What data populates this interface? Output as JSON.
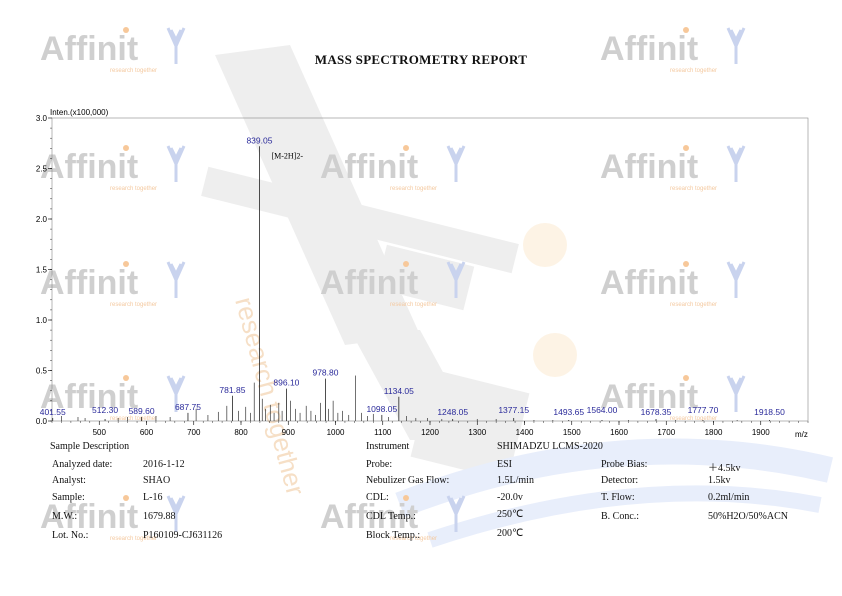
{
  "report_title": "MASS SPECTROMETRY REPORT",
  "watermark": {
    "word": "Affinit",
    "tagline": "research together",
    "big_word": "Affinity",
    "big_tagline": "research together"
  },
  "chart_data": {
    "type": "line",
    "ylabel": "Inten.(x100,000)",
    "xlabel": "m/z",
    "xlim": [
      400,
      2000
    ],
    "ylim": [
      0,
      3.0
    ],
    "xticks": [
      500,
      600,
      700,
      800,
      900,
      1000,
      1100,
      1200,
      1300,
      1400,
      1500,
      1600,
      1700,
      1800,
      1900
    ],
    "yticks": [
      0.0,
      0.5,
      1.0,
      1.5,
      2.0,
      2.5,
      3.0
    ],
    "ytick_labels": [
      "0.0",
      "0.5",
      "1.0",
      "1.5",
      "2.0",
      "2.5",
      "3.0"
    ],
    "annotation": {
      "text": "[M-2H]2-",
      "x": 839.05
    },
    "labeled_peaks": [
      {
        "label": "401.55",
        "x": 401.55,
        "y": 0.03
      },
      {
        "label": "512.30",
        "x": 512.3,
        "y": 0.02
      },
      {
        "label": "589.60",
        "x": 589.6,
        "y": 0.04
      },
      {
        "label": "687.75",
        "x": 687.75,
        "y": 0.08
      },
      {
        "label": "781.85",
        "x": 781.85,
        "y": 0.25
      },
      {
        "label": "839.05",
        "x": 839.05,
        "y": 2.72
      },
      {
        "label": "896.10",
        "x": 896.1,
        "y": 0.32
      },
      {
        "label": "978.80",
        "x": 978.8,
        "y": 0.42
      },
      {
        "label": "1098.05",
        "x": 1098.05,
        "y": 0.06
      },
      {
        "label": "1134.05",
        "x": 1134.05,
        "y": 0.24
      },
      {
        "label": "1248.05",
        "x": 1248.05,
        "y": 0.02
      },
      {
        "label": "1377.15",
        "x": 1377.15,
        "y": 0.03
      },
      {
        "label": "1493.65",
        "x": 1493.65,
        "y": 0.01
      },
      {
        "label": "1564.00",
        "x": 1564.0,
        "y": 0.01
      },
      {
        "label": "1678.35",
        "x": 1678.35,
        "y": 0.02
      },
      {
        "label": "1777.70",
        "x": 1777.7,
        "y": 0.01
      },
      {
        "label": "1918.50",
        "x": 1918.5,
        "y": 0.01
      }
    ],
    "minor_peaks": [
      {
        "x": 420,
        "y": 0.05
      },
      {
        "x": 455,
        "y": 0.04
      },
      {
        "x": 470,
        "y": 0.03
      },
      {
        "x": 540,
        "y": 0.03
      },
      {
        "x": 560,
        "y": 0.04
      },
      {
        "x": 620,
        "y": 0.05
      },
      {
        "x": 650,
        "y": 0.04
      },
      {
        "x": 705,
        "y": 0.12
      },
      {
        "x": 730,
        "y": 0.06
      },
      {
        "x": 752,
        "y": 0.09
      },
      {
        "x": 770,
        "y": 0.15
      },
      {
        "x": 795,
        "y": 0.1
      },
      {
        "x": 810,
        "y": 0.14
      },
      {
        "x": 820,
        "y": 0.08
      },
      {
        "x": 828,
        "y": 0.38
      },
      {
        "x": 845,
        "y": 0.22
      },
      {
        "x": 852,
        "y": 0.12
      },
      {
        "x": 862,
        "y": 0.16
      },
      {
        "x": 870,
        "y": 0.08
      },
      {
        "x": 880,
        "y": 0.18
      },
      {
        "x": 887,
        "y": 0.1
      },
      {
        "x": 905,
        "y": 0.2
      },
      {
        "x": 915,
        "y": 0.12
      },
      {
        "x": 925,
        "y": 0.08
      },
      {
        "x": 938,
        "y": 0.15
      },
      {
        "x": 948,
        "y": 0.1
      },
      {
        "x": 958,
        "y": 0.06
      },
      {
        "x": 968,
        "y": 0.18
      },
      {
        "x": 985,
        "y": 0.12
      },
      {
        "x": 995,
        "y": 0.2
      },
      {
        "x": 1005,
        "y": 0.08
      },
      {
        "x": 1015,
        "y": 0.1
      },
      {
        "x": 1028,
        "y": 0.06
      },
      {
        "x": 1042,
        "y": 0.45
      },
      {
        "x": 1055,
        "y": 0.08
      },
      {
        "x": 1068,
        "y": 0.05
      },
      {
        "x": 1080,
        "y": 0.07
      },
      {
        "x": 1112,
        "y": 0.04
      },
      {
        "x": 1150,
        "y": 0.05
      },
      {
        "x": 1170,
        "y": 0.03
      },
      {
        "x": 1195,
        "y": 0.03
      },
      {
        "x": 1225,
        "y": 0.02
      },
      {
        "x": 1300,
        "y": 0.02
      },
      {
        "x": 1340,
        "y": 0.02
      },
      {
        "x": 1420,
        "y": 0.01
      },
      {
        "x": 1460,
        "y": 0.01
      },
      {
        "x": 1620,
        "y": 0.01
      },
      {
        "x": 1720,
        "y": 0.01
      },
      {
        "x": 1850,
        "y": 0.01
      }
    ]
  },
  "sample": {
    "heading": "Sample Description",
    "rows": [
      {
        "label": "Analyzed date:",
        "value": "2016-1-12"
      },
      {
        "label": "Analyst:",
        "value": "SHAO"
      },
      {
        "label": "Sample:",
        "value": "L-16"
      },
      {
        "label": "M.W.:",
        "value": "1679.88"
      },
      {
        "label": "Lot. No.:",
        "value": "P160109-CJ631126"
      }
    ]
  },
  "instrument": {
    "heading": "Instrument",
    "name": "SHIMADZU LCMS-2020",
    "rows": [
      {
        "label": "Probe:",
        "value": "ESI"
      },
      {
        "label": "Nebulizer Gas Flow:",
        "value": "1.5L/min"
      },
      {
        "label": "CDL:",
        "value": "-20.0v"
      },
      {
        "label": "CDL Temp.:",
        "value": "250℃"
      },
      {
        "label": "Block Temp.:",
        "value": "200℃"
      }
    ],
    "right_rows": [
      {
        "label": "Probe Bias:",
        "value": "＋4.5kv"
      },
      {
        "label": "Detector:",
        "value": "1.5kv"
      },
      {
        "label": "T. Flow:",
        "value": "0.2ml/min"
      },
      {
        "label": "B. Conc.:",
        "value": "50%H2O/50%ACN"
      }
    ]
  }
}
